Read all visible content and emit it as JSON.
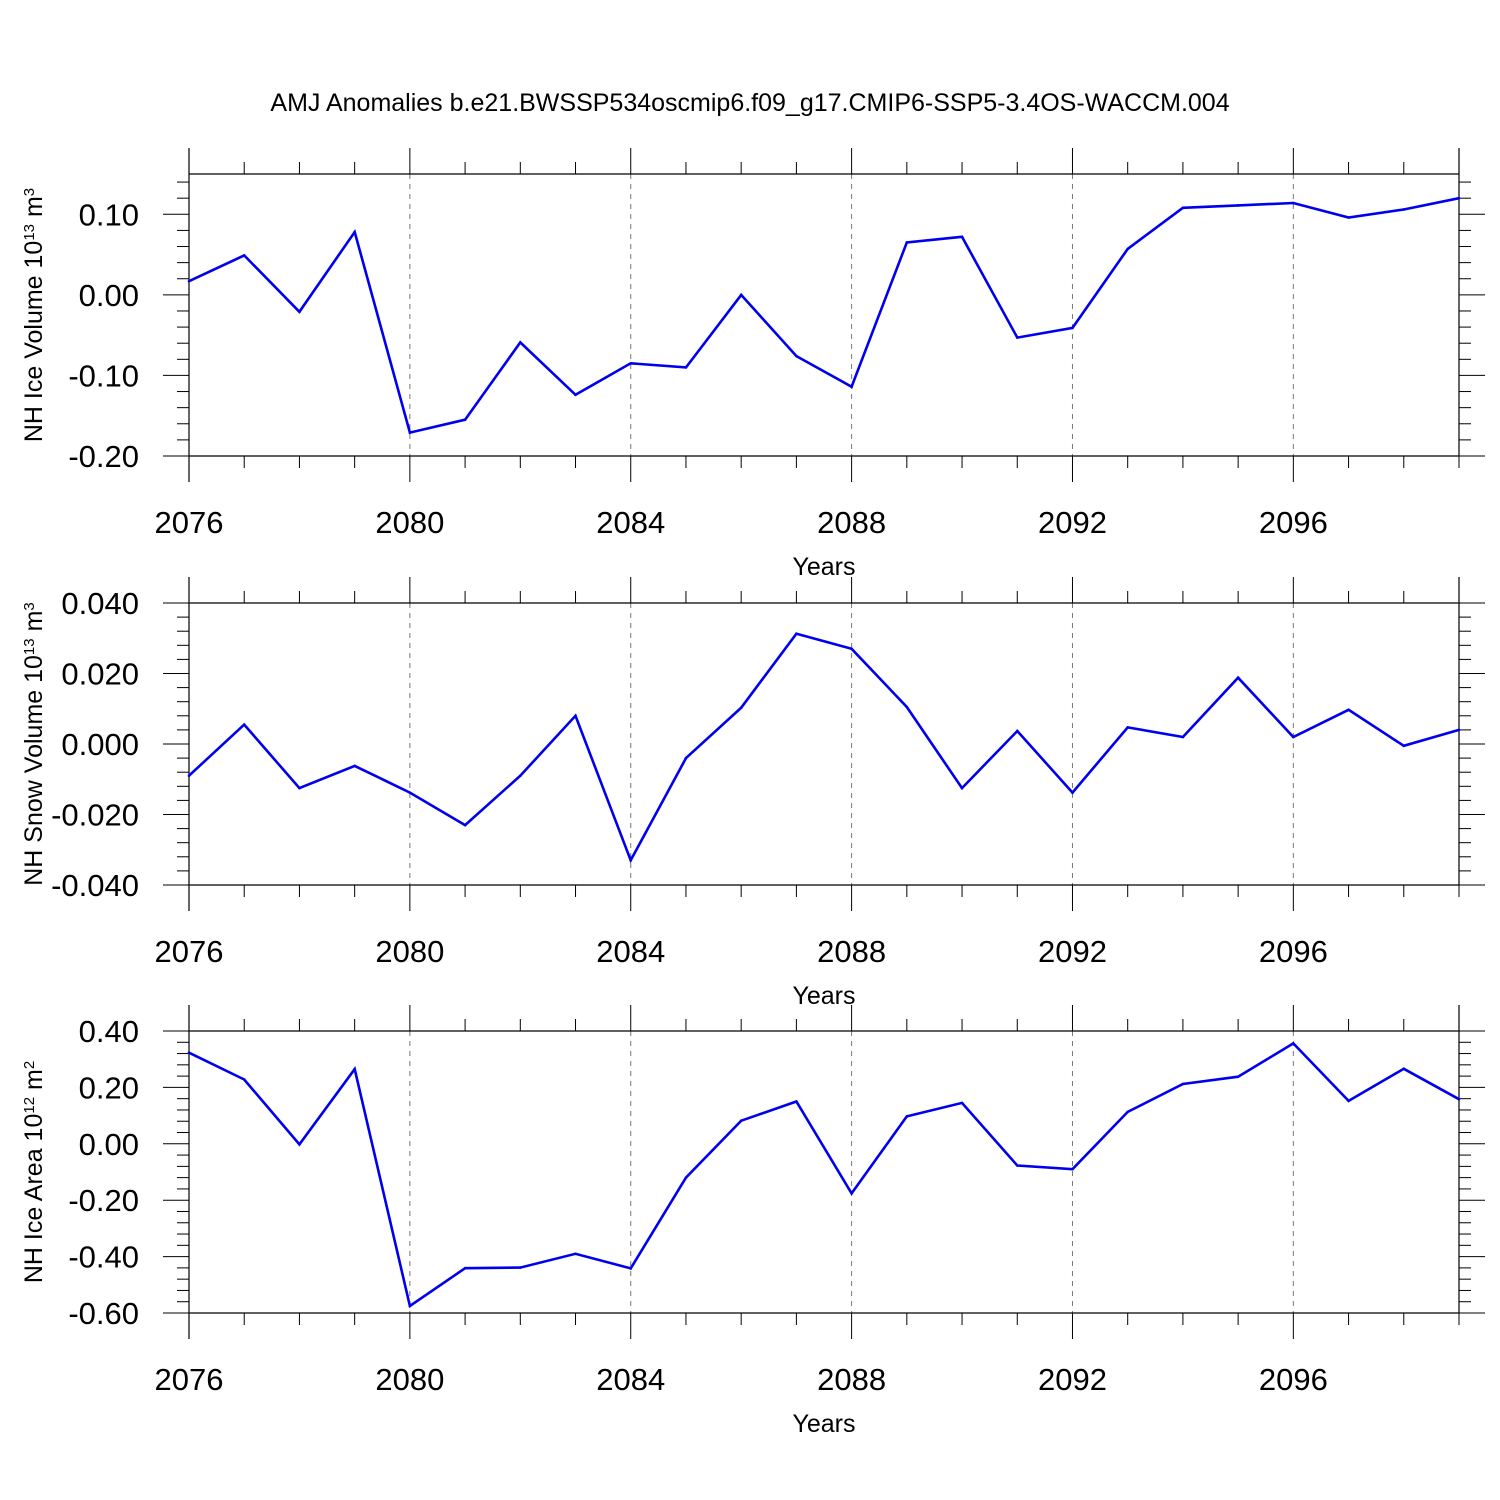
{
  "title": "AMJ Anomalies b.e21.BWSSP534oscmip6.f09_g17.CMIP6-SSP5-3.4OS-WACCM.004",
  "line_color": "#0000ee",
  "chart_data": [
    {
      "type": "line",
      "ylabel_main": "NH Ice Volume 10",
      "ylabel_exp": "13",
      "ylabel_unit": " m",
      "ylabel_unit_exp": "3",
      "xlabel": "Years",
      "xlim": [
        2076,
        2099
      ],
      "ylim": [
        -0.2,
        0.15
      ],
      "yticks": [
        -0.2,
        -0.1,
        0.0,
        0.1
      ],
      "ytick_labels": [
        "-0.20",
        "-0.10",
        "0.00",
        "0.10"
      ],
      "xticks": [
        2076,
        2080,
        2084,
        2088,
        2092,
        2096
      ],
      "xtick_labels": [
        "2076",
        "2080",
        "2084",
        "2088",
        "2092",
        "2096"
      ],
      "x": [
        2076,
        2077,
        2078,
        2079,
        2080,
        2081,
        2082,
        2083,
        2084,
        2085,
        2086,
        2087,
        2088,
        2089,
        2090,
        2091,
        2092,
        2093,
        2094,
        2095,
        2096,
        2097,
        2098,
        2099
      ],
      "values": [
        0.017,
        0.049,
        -0.021,
        0.078,
        -0.171,
        -0.155,
        -0.059,
        -0.124,
        -0.085,
        -0.09,
        0.0,
        -0.076,
        -0.114,
        0.065,
        0.072,
        -0.053,
        -0.041,
        0.057,
        0.108,
        0.111,
        0.114,
        0.096,
        0.106,
        0.12
      ]
    },
    {
      "type": "line",
      "ylabel_main": "NH Snow Volume 10",
      "ylabel_exp": "13",
      "ylabel_unit": " m",
      "ylabel_unit_exp": "3",
      "xlabel": "Years",
      "xlim": [
        2076,
        2099
      ],
      "ylim": [
        -0.04,
        0.04
      ],
      "yticks": [
        -0.04,
        -0.02,
        0.0,
        0.02,
        0.04
      ],
      "ytick_labels": [
        "-0.040",
        "-0.020",
        "0.000",
        "0.020",
        "0.040"
      ],
      "xticks": [
        2076,
        2080,
        2084,
        2088,
        2092,
        2096
      ],
      "xtick_labels": [
        "2076",
        "2080",
        "2084",
        "2088",
        "2092",
        "2096"
      ],
      "x": [
        2076,
        2077,
        2078,
        2079,
        2080,
        2081,
        2082,
        2083,
        2084,
        2085,
        2086,
        2087,
        2088,
        2089,
        2090,
        2091,
        2092,
        2093,
        2094,
        2095,
        2096,
        2097,
        2098,
        2099
      ],
      "values": [
        -0.009,
        0.0055,
        -0.0125,
        -0.0062,
        -0.0138,
        -0.023,
        -0.009,
        0.008,
        -0.033,
        -0.004,
        0.0103,
        0.0313,
        0.027,
        0.0105,
        -0.0125,
        0.0037,
        -0.0138,
        0.0047,
        0.002,
        0.0188,
        0.002,
        0.0097,
        -0.0005,
        0.004
      ]
    },
    {
      "type": "line",
      "ylabel_main": "NH Ice Area 10",
      "ylabel_exp": "12",
      "ylabel_unit": " m",
      "ylabel_unit_exp": "2",
      "xlabel": "Years",
      "xlim": [
        2076,
        2099
      ],
      "ylim": [
        -0.6,
        0.4
      ],
      "yticks": [
        -0.6,
        -0.4,
        -0.2,
        0.0,
        0.2,
        0.4
      ],
      "ytick_labels": [
        "-0.60",
        "-0.40",
        "-0.20",
        "0.00",
        "0.20",
        "0.40"
      ],
      "xticks": [
        2076,
        2080,
        2084,
        2088,
        2092,
        2096
      ],
      "xtick_labels": [
        "2076",
        "2080",
        "2084",
        "2088",
        "2092",
        "2096"
      ],
      "x": [
        2076,
        2077,
        2078,
        2079,
        2080,
        2081,
        2082,
        2083,
        2084,
        2085,
        2086,
        2087,
        2088,
        2089,
        2090,
        2091,
        2092,
        2093,
        2094,
        2095,
        2096,
        2097,
        2098,
        2099
      ],
      "values": [
        0.323,
        0.228,
        -0.002,
        0.265,
        -0.575,
        -0.441,
        -0.439,
        -0.39,
        -0.442,
        -0.12,
        0.082,
        0.15,
        -0.176,
        0.097,
        0.145,
        -0.077,
        -0.09,
        0.113,
        0.212,
        0.238,
        0.356,
        0.152,
        0.266,
        0.158
      ]
    }
  ]
}
